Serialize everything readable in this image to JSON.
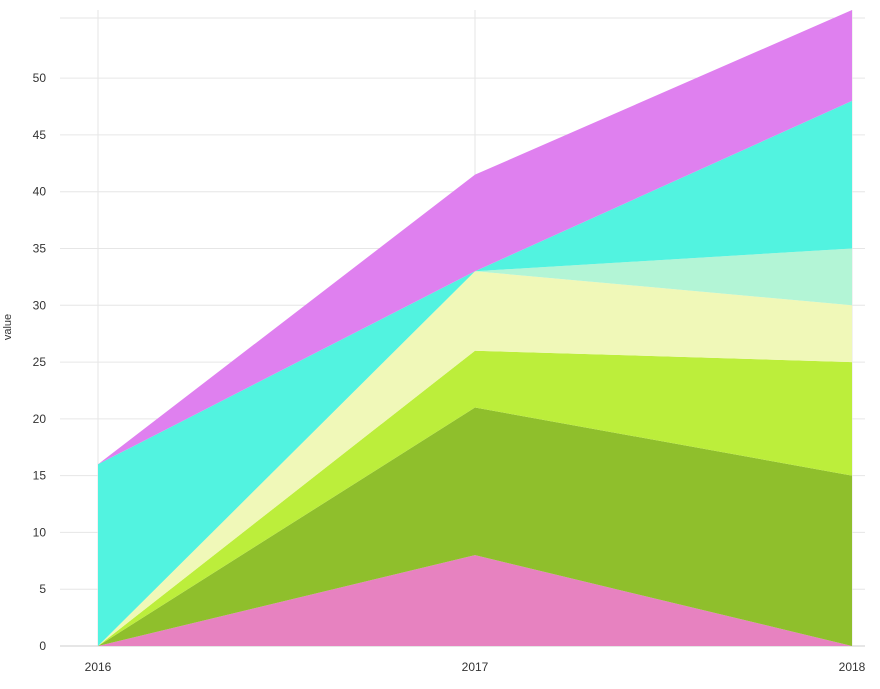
{
  "chart_data": {
    "type": "area",
    "stacked": true,
    "title": "",
    "xlabel": "",
    "ylabel": "value",
    "x": [
      "2016",
      "2017",
      "2018"
    ],
    "ylim": [
      0,
      56
    ],
    "yticks": [
      0,
      5,
      10,
      15,
      20,
      25,
      30,
      35,
      40,
      45,
      50
    ],
    "grid": true,
    "legend": "none",
    "series": [
      {
        "color": "#e782c0",
        "values": [
          0,
          8,
          0
        ]
      },
      {
        "color": "#8fbf2c",
        "values": [
          0,
          13,
          15
        ]
      },
      {
        "color": "#bcee3b",
        "values": [
          0,
          5,
          10
        ]
      },
      {
        "color": "#f0f8b8",
        "values": [
          0,
          7,
          5
        ]
      },
      {
        "color": "#b3f5d6",
        "values": [
          0,
          0,
          5
        ]
      },
      {
        "color": "#52f3e0",
        "values": [
          16,
          0,
          13
        ]
      },
      {
        "color": "#df80ef",
        "values": [
          0,
          8.5,
          8
        ]
      }
    ]
  }
}
